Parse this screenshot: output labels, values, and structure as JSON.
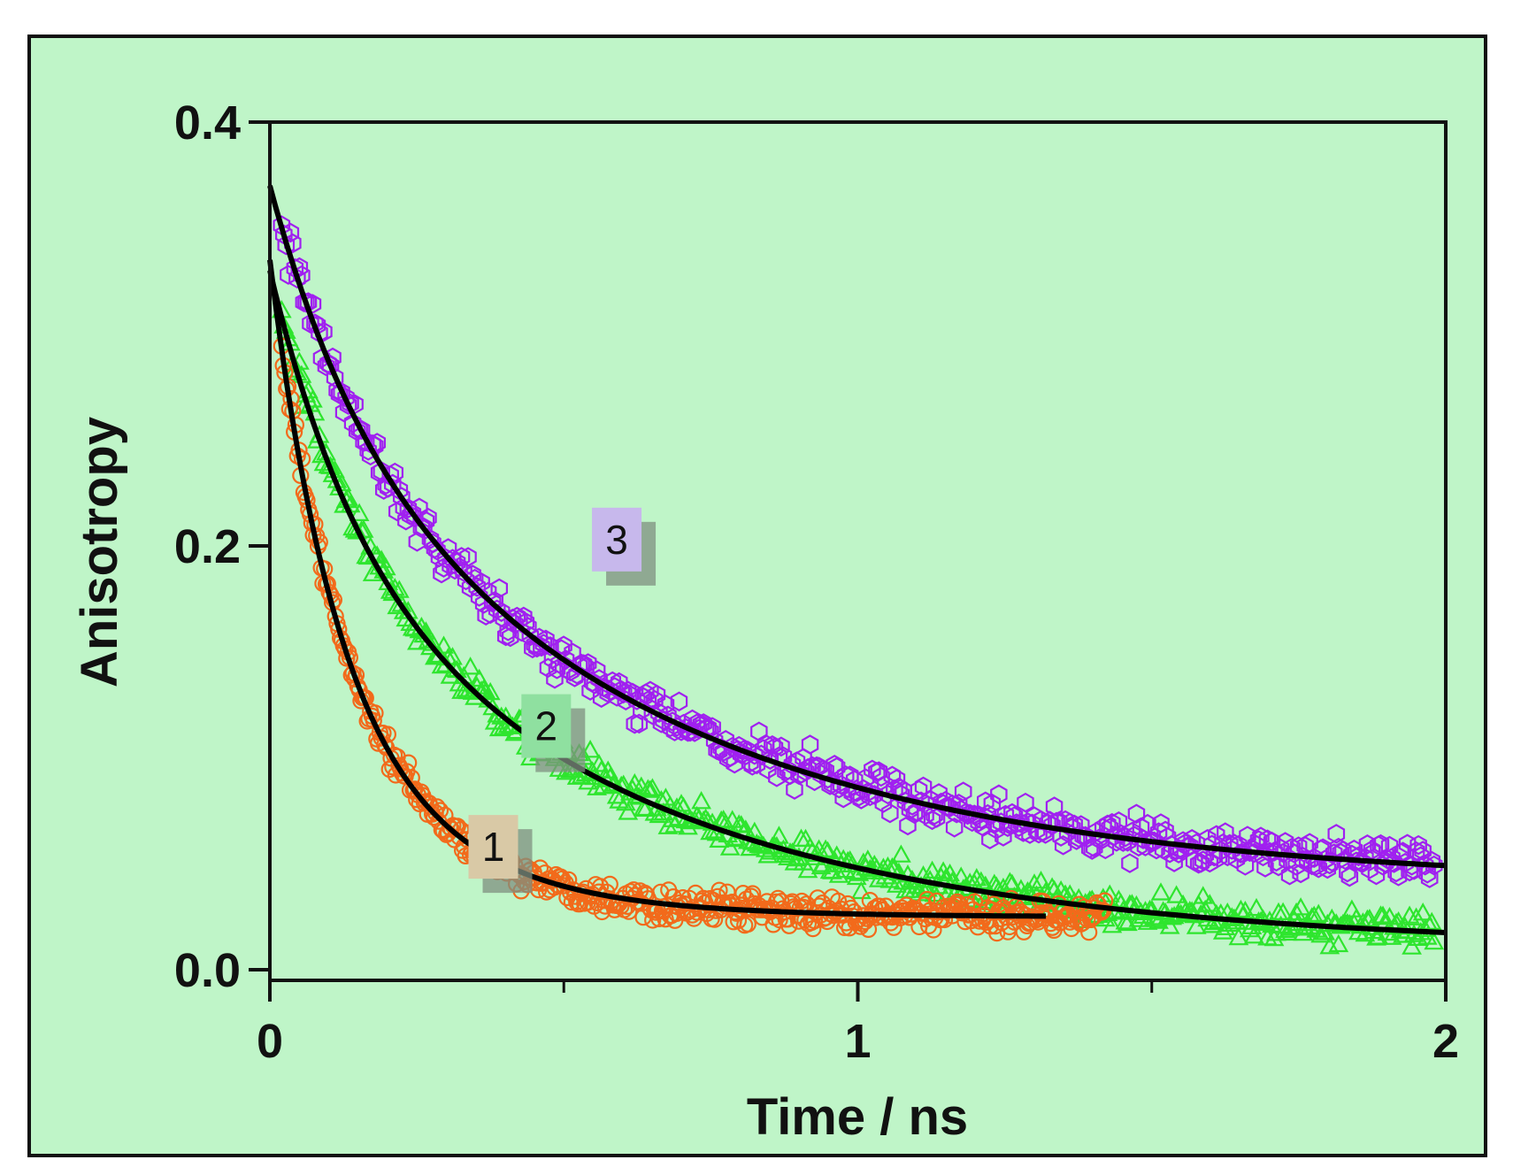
{
  "chart_data": {
    "type": "scatter",
    "title": "",
    "xlabel": "Time / ns",
    "ylabel": "Anisotropy",
    "xlim": [
      0,
      2
    ],
    "ylim": [
      -0.005,
      0.4
    ],
    "x_ticks": [
      {
        "value": 0,
        "label": "0"
      },
      {
        "value": 1,
        "label": "1"
      },
      {
        "value": 2,
        "label": "2"
      }
    ],
    "x_minor_ticks": [
      0.5,
      1.5
    ],
    "y_ticks": [
      {
        "value": 0.0,
        "label": "0.0"
      },
      {
        "value": 0.2,
        "label": "0.2"
      },
      {
        "value": 0.4,
        "label": "0.4"
      }
    ],
    "grid": false,
    "background_color": "#bff5c8",
    "series": [
      {
        "name": "1",
        "label": "1",
        "marker": "circle",
        "color": "#f26a1b",
        "label_box_color": "#d9c9a6",
        "label_position": {
          "x": 0.38,
          "y": 0.058
        },
        "data_x_range": [
          0.02,
          1.42
        ],
        "noise": 0.006,
        "fit": {
          "model": "r = a1*exp(-t/tau1) + a2*exp(-t/tau2) + c",
          "a1": 0.19,
          "tau1": 0.11,
          "a2": 0.12,
          "tau2": 0.22,
          "c": 0.025,
          "x_range": [
            0.0,
            1.32
          ]
        }
      },
      {
        "name": "2",
        "label": "2",
        "marker": "triangle",
        "color": "#2ee52e",
        "label_box_color": "#8fe0a0",
        "label_position": {
          "x": 0.47,
          "y": 0.115
        },
        "data_x_range": [
          0.02,
          1.98
        ],
        "noise": 0.007,
        "fit": {
          "model": "r = a1*exp(-t/tau1) + a2*exp(-t/tau2) + c",
          "a1": 0.13,
          "tau1": 0.15,
          "a2": 0.19,
          "tau2": 0.62,
          "c": 0.01,
          "x_range": [
            0.0,
            2.0
          ]
        }
      },
      {
        "name": "3",
        "label": "3",
        "marker": "hexagon",
        "color": "#a020f0",
        "label_box_color": "#c7b8ec",
        "label_position": {
          "x": 0.59,
          "y": 0.203
        },
        "data_x_range": [
          0.02,
          1.98
        ],
        "noise": 0.008,
        "fit": {
          "model": "r = a1*exp(-t/tau1) + a2*exp(-t/tau2) + c",
          "a1": 0.1,
          "tau1": 0.15,
          "a2": 0.23,
          "tau2": 0.62,
          "c": 0.04,
          "x_range": [
            0.0,
            2.0
          ]
        }
      }
    ]
  }
}
